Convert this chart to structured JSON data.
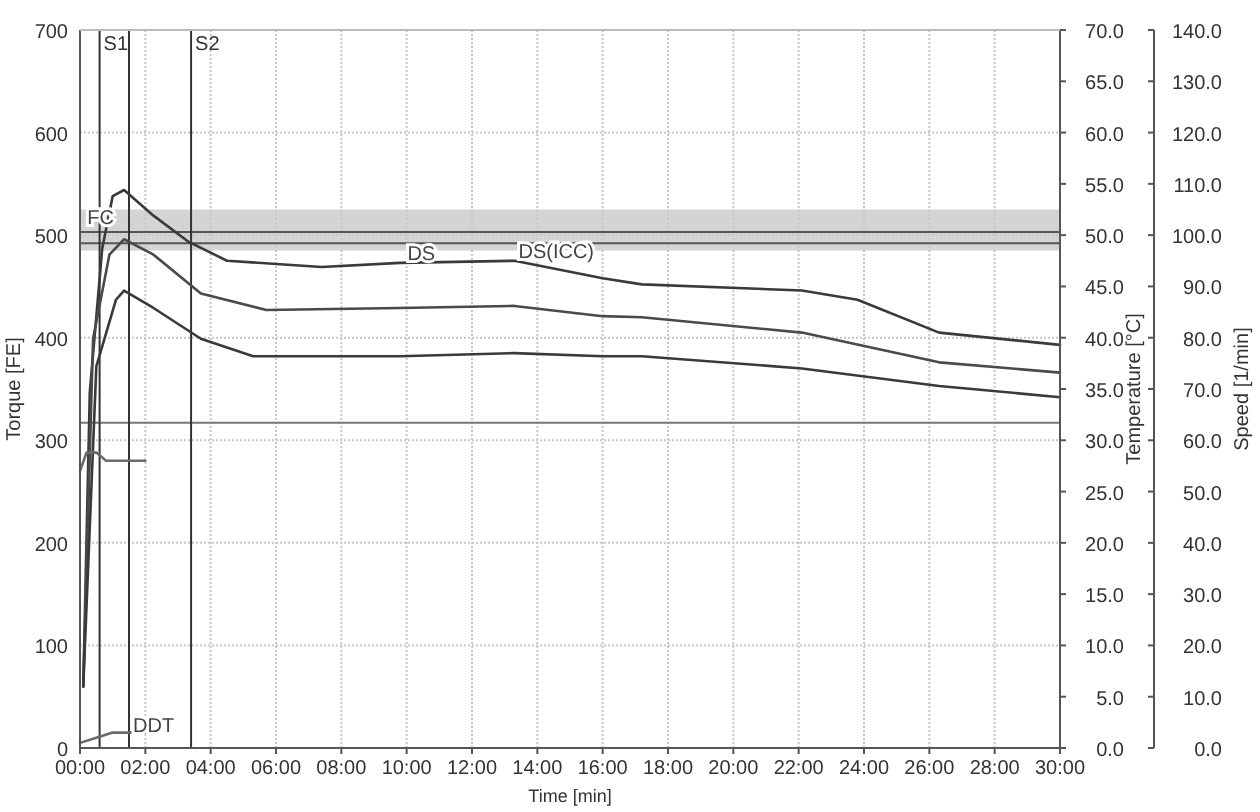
{
  "chart_data": {
    "type": "line",
    "xlabel": "Time [min]",
    "ylabel": "Torque [FE]",
    "y2label": "Temperature [°C]",
    "y3label": "Speed [1/min]",
    "xlim": [
      0,
      30
    ],
    "xticks": [
      {
        "value": 0,
        "label": "00:00"
      },
      {
        "value": 2,
        "label": "02:00"
      },
      {
        "value": 4,
        "label": "04:00"
      },
      {
        "value": 6,
        "label": "06:00"
      },
      {
        "value": 8,
        "label": "08:00"
      },
      {
        "value": 10,
        "label": "10:00"
      },
      {
        "value": 12,
        "label": "12:00"
      },
      {
        "value": 14,
        "label": "14:00"
      },
      {
        "value": 16,
        "label": "16:00"
      },
      {
        "value": 18,
        "label": "18:00"
      },
      {
        "value": 20,
        "label": "20:00"
      },
      {
        "value": 22,
        "label": "22:00"
      },
      {
        "value": 24,
        "label": "24:00"
      },
      {
        "value": 26,
        "label": "26:00"
      },
      {
        "value": 28,
        "label": "28:00"
      },
      {
        "value": 30,
        "label": "30:00"
      }
    ],
    "ylim": [
      0,
      700
    ],
    "yticks": [
      0,
      100,
      200,
      300,
      400,
      500,
      600,
      700
    ],
    "y2lim": [
      0,
      70
    ],
    "y2ticks": [
      {
        "value": 0,
        "label": "0.0"
      },
      {
        "value": 5,
        "label": "5.0"
      },
      {
        "value": 10,
        "label": "10.0"
      },
      {
        "value": 15,
        "label": "15.0"
      },
      {
        "value": 20,
        "label": "20.0"
      },
      {
        "value": 25,
        "label": "25.0"
      },
      {
        "value": 30,
        "label": "30.0"
      },
      {
        "value": 35,
        "label": "35.0"
      },
      {
        "value": 40,
        "label": "40.0"
      },
      {
        "value": 45,
        "label": "45.0"
      },
      {
        "value": 50,
        "label": "50.0"
      },
      {
        "value": 55,
        "label": "55.0"
      },
      {
        "value": 60,
        "label": "60.0"
      },
      {
        "value": 65,
        "label": "65.0"
      },
      {
        "value": 70,
        "label": "70.0"
      }
    ],
    "y3lim": [
      0,
      140
    ],
    "y3ticks": [
      {
        "value": 0,
        "label": "0.0"
      },
      {
        "value": 10,
        "label": "10.0"
      },
      {
        "value": 20,
        "label": "20.0"
      },
      {
        "value": 30,
        "label": "30.0"
      },
      {
        "value": 40,
        "label": "40.0"
      },
      {
        "value": 50,
        "label": "50.0"
      },
      {
        "value": 60,
        "label": "60.0"
      },
      {
        "value": 70,
        "label": "70.0"
      },
      {
        "value": 80,
        "label": "80.0"
      },
      {
        "value": 90,
        "label": "90.0"
      },
      {
        "value": 100,
        "label": "100.0"
      },
      {
        "value": 110,
        "label": "110.0"
      },
      {
        "value": 120,
        "label": "120.0"
      },
      {
        "value": 130,
        "label": "130.0"
      },
      {
        "value": 140,
        "label": "140.0"
      }
    ],
    "grid": true,
    "line_style": "solid",
    "marker": "none",
    "series": [
      {
        "color": "#3a3a3a",
        "x": [
          0.1,
          0.3,
          0.68,
          1.0,
          1.35,
          2.25,
          3.3,
          4.5,
          7.4,
          9.8,
          13.3,
          16.0,
          17.2,
          22.1,
          23.8,
          26.3,
          30
        ],
        "values": [
          60,
          347,
          487,
          538,
          544,
          519,
          494,
          475,
          469,
          473,
          475,
          458,
          452,
          446,
          437,
          405,
          393
        ]
      },
      {
        "color": "#4a4a4a",
        "x": [
          0.1,
          0.4,
          0.9,
          1.35,
          2.25,
          3.7,
          5.7,
          9.8,
          13.3,
          16.0,
          17.2,
          22.1,
          26.3,
          30
        ],
        "values": [
          60,
          399,
          481,
          496,
          481,
          443,
          427,
          429,
          431,
          421,
          420,
          405,
          376,
          366
        ]
      },
      {
        "color": "#3a3a3a",
        "x": [
          0.1,
          0.5,
          1.1,
          1.35,
          2.25,
          3.7,
          5.3,
          9.8,
          13.3,
          16.0,
          17.2,
          22.1,
          26.3,
          30
        ],
        "values": [
          60,
          372,
          437,
          446,
          429,
          399,
          382,
          382,
          385,
          382,
          382,
          370,
          353,
          342
        ]
      },
      {
        "color": "#6a6a6a",
        "axis": "y2",
        "x": [
          0,
          0.2,
          0.5,
          0.8,
          2
        ],
        "values": [
          27,
          28.8,
          28.8,
          28,
          28
        ]
      },
      {
        "color": "#6a6a6a",
        "axis": "y3",
        "x": [
          0,
          0.5,
          1,
          2
        ],
        "values": [
          1,
          2,
          3,
          3
        ]
      }
    ],
    "bands": [
      {
        "axis": "y",
        "from": 485,
        "to": 525,
        "color": "#d4d4d4"
      }
    ],
    "ref_lines": [
      {
        "axis": "y",
        "value": 503,
        "color": "#555555"
      },
      {
        "axis": "y",
        "value": 492,
        "color": "#555555"
      },
      {
        "axis": "y",
        "value": 317,
        "color": "#777777"
      },
      {
        "axis": "x",
        "value": 0.6,
        "label": "S1",
        "color": "#333333"
      },
      {
        "axis": "x",
        "value": 3.4,
        "label": "S2",
        "color": "#333333"
      },
      {
        "axis": "x",
        "value": 1.5,
        "color": "#333333"
      }
    ],
    "annotations": [
      {
        "text": "FC",
        "x": 0.1,
        "y": 505
      },
      {
        "text": "DS",
        "x": 9.9,
        "y": 470
      },
      {
        "text": "DS(ICC)",
        "x": 13.3,
        "y": 472
      },
      {
        "text": "DDT",
        "x": 1.5,
        "y": 10
      }
    ]
  }
}
